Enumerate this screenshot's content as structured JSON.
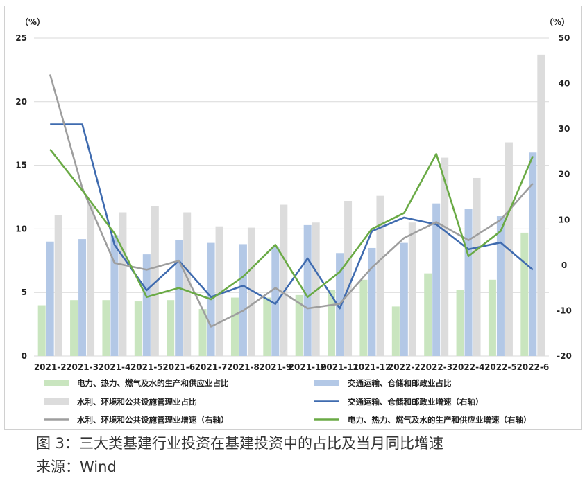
{
  "caption": "图 3：三大类基建行业投资在基建投资中的占比及当月同比增速",
  "source": "来源：Wind",
  "chart_data": {
    "type": "bar",
    "title": "",
    "y_left_unit": "（%）",
    "y_right_unit": "（%）",
    "y_left_lim": [
      0,
      25
    ],
    "y_right_lim": [
      -20,
      50
    ],
    "y_left_ticks": [
      "0",
      "5",
      "10",
      "15",
      "20",
      "25"
    ],
    "y_right_ticks": [
      "-20",
      "-10",
      "0",
      "10",
      "20",
      "30",
      "40",
      "50"
    ],
    "grid": true,
    "legend_position": "bottom",
    "categories": [
      "2021-2",
      "2021-3",
      "2021-4",
      "2021-5",
      "2021-6",
      "2021-7",
      "2021-8",
      "2021-9",
      "2021-10",
      "2021-11",
      "2021-12",
      "2022-2",
      "2022-3",
      "2022-4",
      "2022-5",
      "2022-6"
    ],
    "bar_series": [
      {
        "name": "电力、热力、燃气及水的生产和供应业占比",
        "color": "#c9e5bf",
        "axis": "left",
        "values": [
          4.0,
          4.4,
          4.4,
          4.3,
          4.4,
          3.7,
          4.6,
          4.6,
          4.8,
          5.2,
          6.0,
          3.9,
          6.5,
          5.2,
          6.0,
          9.7
        ]
      },
      {
        "name": "交通运输、仓储和邮政业占比",
        "color": "#b3c8e6",
        "axis": "left",
        "values": [
          9.0,
          9.2,
          9.5,
          8.0,
          9.1,
          8.9,
          8.8,
          8.6,
          10.3,
          8.1,
          8.5,
          8.9,
          12.0,
          11.6,
          11.0,
          16.0
        ]
      },
      {
        "name": "水利、环境和公共设施管理业占比",
        "color": "#dcdcdc",
        "axis": "left",
        "values": [
          11.1,
          12.0,
          11.3,
          11.8,
          11.3,
          10.2,
          10.1,
          11.9,
          10.5,
          12.2,
          12.6,
          10.5,
          15.6,
          14.0,
          16.8,
          23.7
        ]
      }
    ],
    "line_series": [
      {
        "name": "交通运输、仓储和邮政业增速（右轴）",
        "color": "#3f6baf",
        "axis": "right",
        "values": [
          31.0,
          31.0,
          4.5,
          -5.5,
          1.0,
          -7.0,
          -4.5,
          -8.5,
          1.5,
          -9.5,
          7.5,
          10.5,
          9.0,
          3.5,
          5.0,
          -1.0
        ]
      },
      {
        "name": "水利、环境和公共设施管理业增速（右轴）",
        "color": "#9e9e9e",
        "axis": "right",
        "values": [
          42.0,
          17.0,
          0.5,
          -1.0,
          1.0,
          -13.5,
          -10.0,
          -5.0,
          -9.5,
          -8.5,
          -0.5,
          6.0,
          9.5,
          5.5,
          10.0,
          18.0
        ]
      },
      {
        "name": "电力、热力、燃气及水的生产和供应业增速（右轴）",
        "color": "#6aaa45",
        "axis": "right",
        "values": [
          25.5,
          16.5,
          7.0,
          -7.0,
          -5.0,
          -7.5,
          -2.5,
          4.5,
          -7.0,
          -1.5,
          8.0,
          11.5,
          24.5,
          2.0,
          7.5,
          24.0
        ]
      }
    ],
    "legend_order": [
      {
        "kind": "bar",
        "index": 0
      },
      {
        "kind": "bar",
        "index": 1
      },
      {
        "kind": "bar",
        "index": 2
      },
      {
        "kind": "line",
        "index": 0
      },
      {
        "kind": "line",
        "index": 1
      },
      {
        "kind": "line",
        "index": 2
      }
    ]
  }
}
